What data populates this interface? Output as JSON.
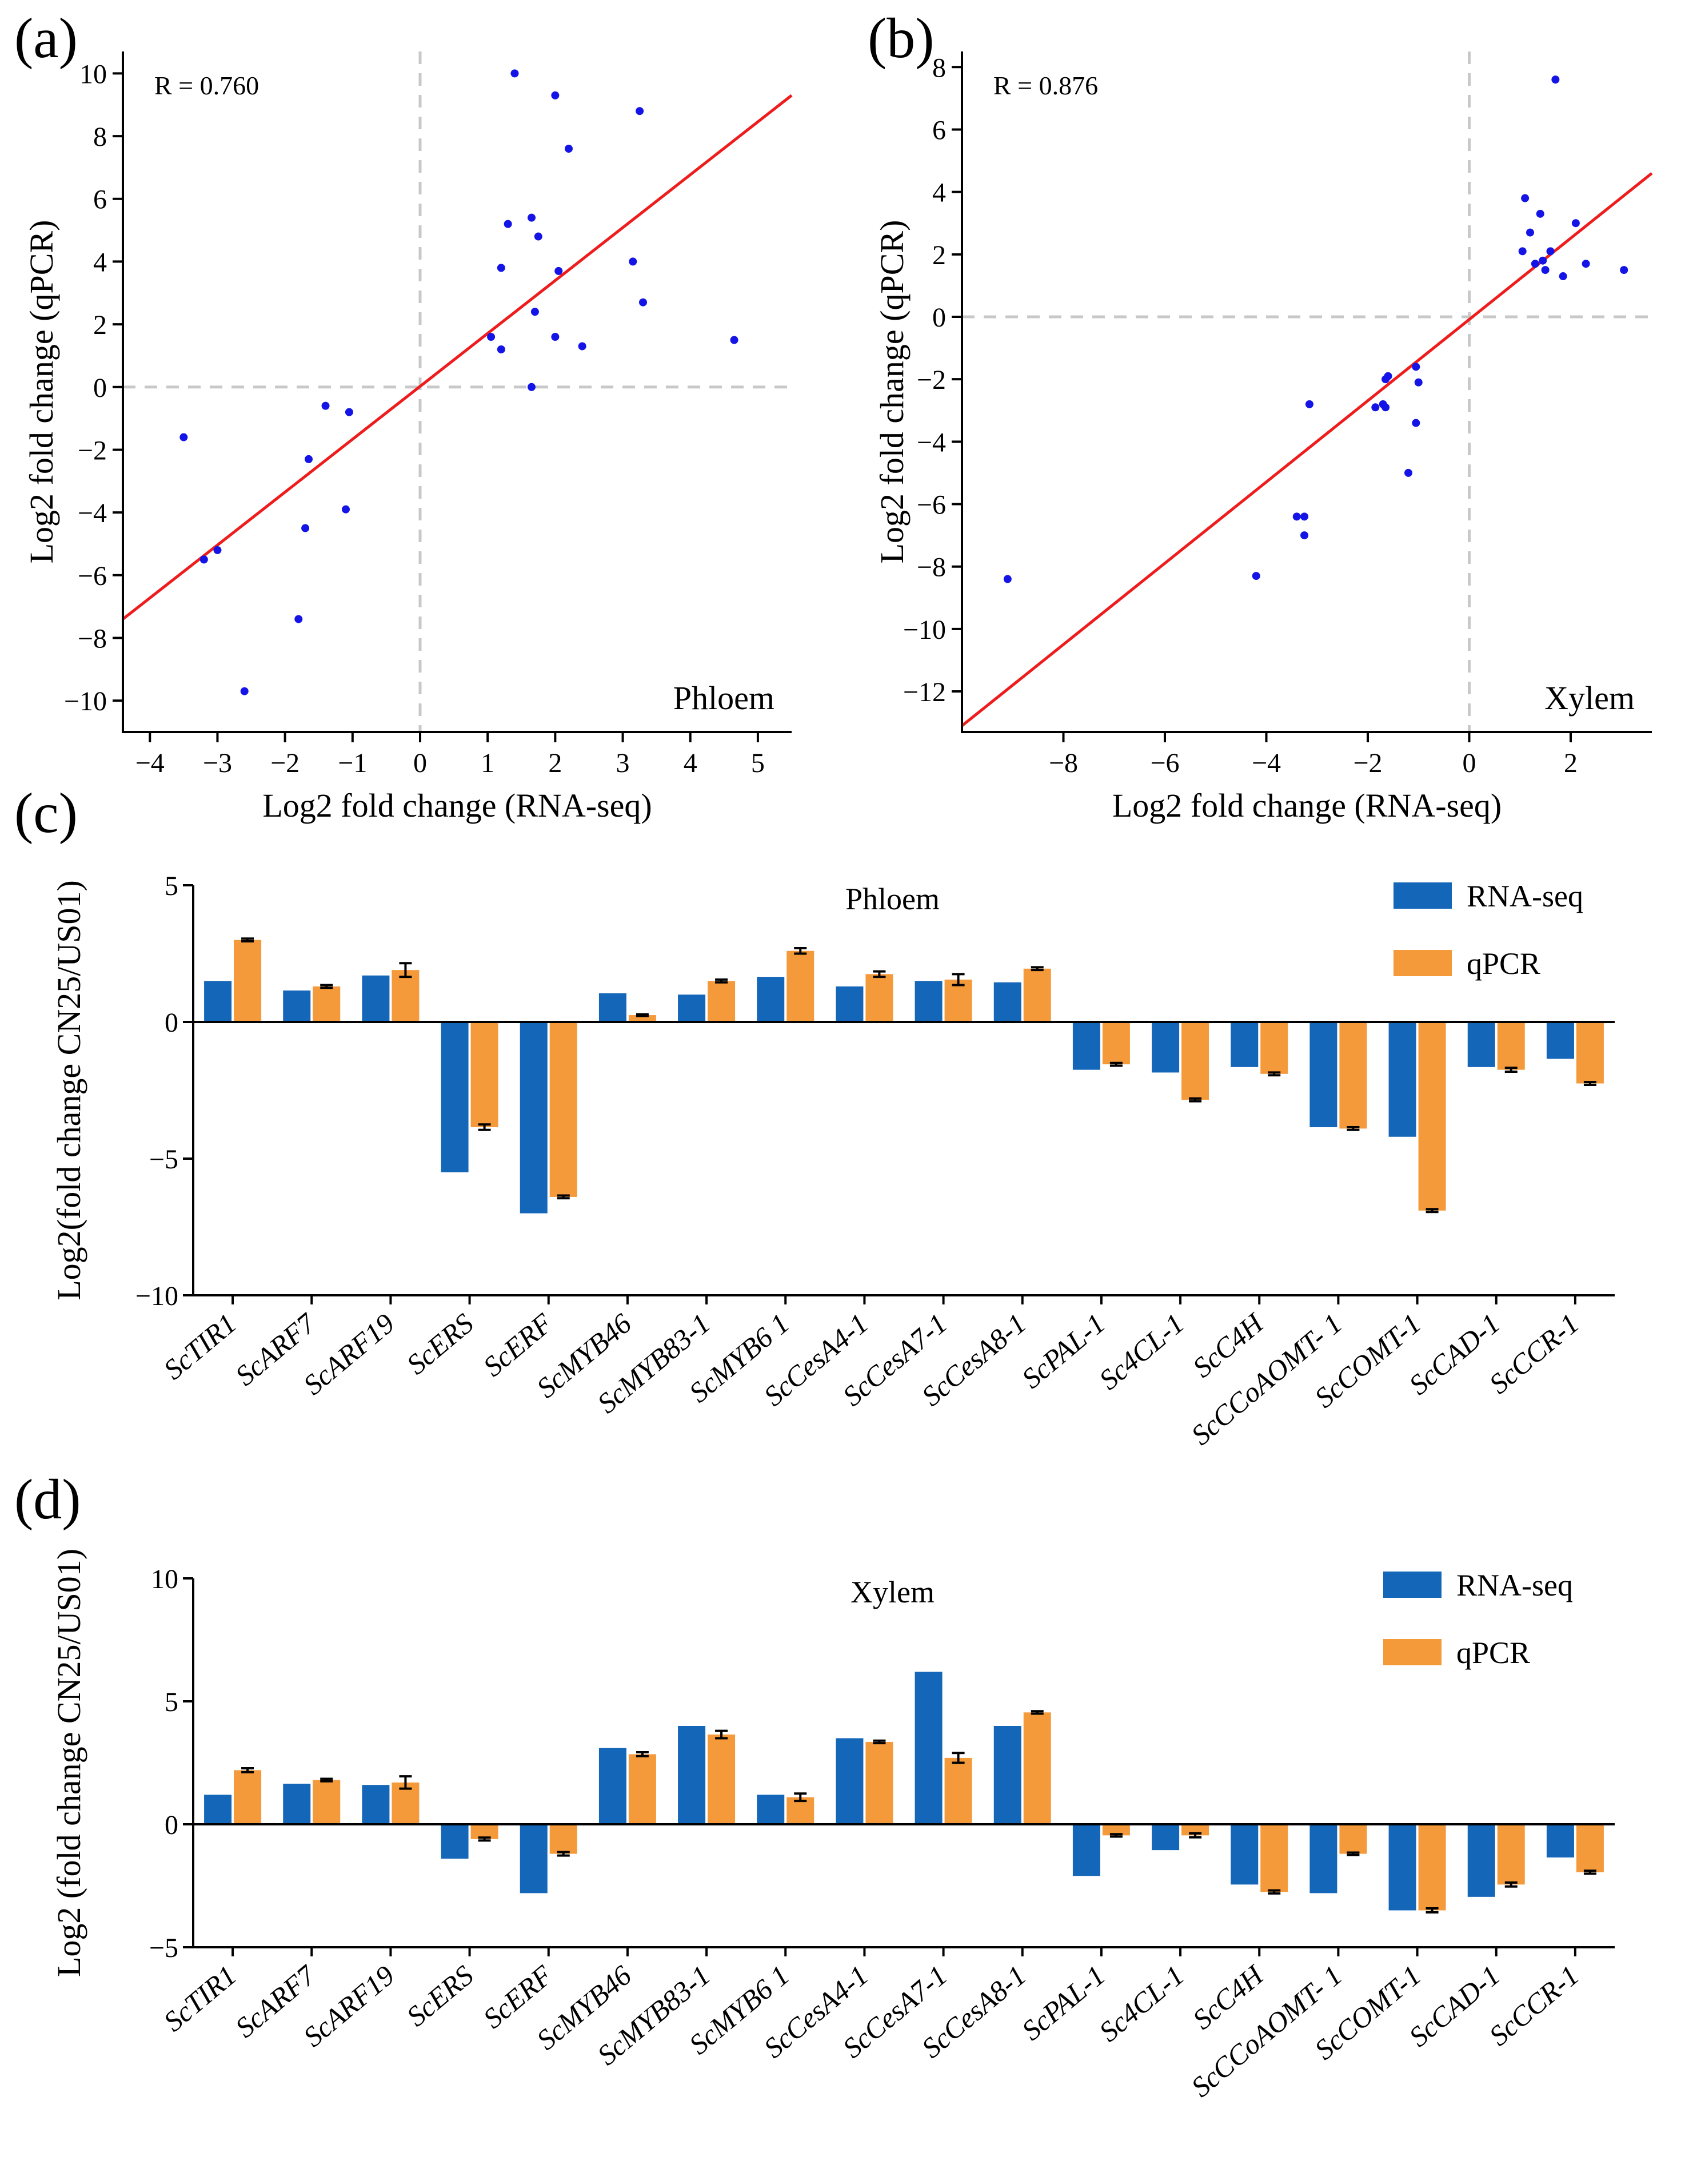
{
  "colors": {
    "point": "#1414e6",
    "fit": "#ee1c1c",
    "ref": "#c8c8c8",
    "rna": "#1466b8",
    "qpcr": "#f59a3b",
    "axis": "#000000"
  },
  "chart_data": [
    {
      "id": "a",
      "type": "scatter",
      "panel_label": "(a)",
      "xlabel": "Log2 fold change (RNA-seq)",
      "ylabel": "Log2 fold change (qPCR)",
      "r_text": "R = 0.760",
      "tissue": "Phloem",
      "xlim": [
        -4.4,
        5.5
      ],
      "ylim": [
        -11.0,
        10.7
      ],
      "xticks": [
        -4,
        -3,
        -2,
        -1,
        0,
        1,
        2,
        3,
        4,
        5
      ],
      "yticks": [
        -10,
        -8,
        -6,
        -4,
        -2,
        0,
        2,
        4,
        6,
        8,
        10
      ],
      "fit": {
        "x": [
          -4.4,
          5.5
        ],
        "y": [
          -7.4,
          9.3
        ]
      },
      "points": [
        [
          -3.5,
          -1.6
        ],
        [
          -3.2,
          -5.5
        ],
        [
          -3.0,
          -5.2
        ],
        [
          -2.6,
          -9.7
        ],
        [
          -1.8,
          -7.4
        ],
        [
          -1.7,
          -4.5
        ],
        [
          -1.65,
          -2.3
        ],
        [
          -1.4,
          -0.6
        ],
        [
          -1.1,
          -3.9
        ],
        [
          -1.05,
          -0.8
        ],
        [
          1.05,
          1.6
        ],
        [
          1.2,
          1.2
        ],
        [
          1.2,
          3.8
        ],
        [
          1.3,
          5.2
        ],
        [
          1.4,
          10.0
        ],
        [
          1.65,
          5.4
        ],
        [
          1.65,
          0.0
        ],
        [
          1.7,
          2.4
        ],
        [
          1.75,
          4.8
        ],
        [
          2.0,
          9.3
        ],
        [
          2.0,
          1.6
        ],
        [
          2.05,
          3.7
        ],
        [
          2.2,
          7.6
        ],
        [
          2.4,
          1.3
        ],
        [
          3.15,
          4.0
        ],
        [
          3.25,
          8.8
        ],
        [
          3.3,
          2.7
        ],
        [
          4.65,
          1.5
        ]
      ]
    },
    {
      "id": "b",
      "type": "scatter",
      "panel_label": "(b)",
      "xlabel": "Log2 fold change (RNA-seq)",
      "ylabel": "Log2 fold change (qPCR)",
      "r_text": "R = 0.876",
      "tissue": "Xylem",
      "xlim": [
        -10.0,
        3.6
      ],
      "ylim": [
        -13.3,
        8.5
      ],
      "xticks": [
        -8,
        -6,
        -4,
        -2,
        0,
        2
      ],
      "yticks": [
        -12,
        -10,
        -8,
        -6,
        -4,
        -2,
        0,
        2,
        4,
        6,
        8
      ],
      "fit": {
        "x": [
          -10.0,
          3.6
        ],
        "y": [
          -13.1,
          4.6
        ]
      },
      "points": [
        [
          -9.1,
          -8.4
        ],
        [
          -4.2,
          -8.3
        ],
        [
          -3.4,
          -6.4
        ],
        [
          -3.25,
          -6.4
        ],
        [
          -3.25,
          -7.0
        ],
        [
          -3.15,
          -2.8
        ],
        [
          -1.85,
          -2.9
        ],
        [
          -1.7,
          -2.8
        ],
        [
          -1.65,
          -2.9
        ],
        [
          -1.65,
          -2.0
        ],
        [
          -1.6,
          -1.9
        ],
        [
          -1.2,
          -5.0
        ],
        [
          -1.05,
          -1.6
        ],
        [
          -1.05,
          -3.4
        ],
        [
          -1.0,
          -2.1
        ],
        [
          1.05,
          2.1
        ],
        [
          1.1,
          3.8
        ],
        [
          1.2,
          2.7
        ],
        [
          1.3,
          1.7
        ],
        [
          1.4,
          3.3
        ],
        [
          1.45,
          1.8
        ],
        [
          1.5,
          1.5
        ],
        [
          1.6,
          2.1
        ],
        [
          1.7,
          7.6
        ],
        [
          1.85,
          1.3
        ],
        [
          2.1,
          3.0
        ],
        [
          2.3,
          1.7
        ],
        [
          3.05,
          1.5
        ]
      ]
    },
    {
      "id": "c",
      "type": "bar",
      "panel_label": "(c)",
      "title": "Phloem",
      "ylabel": "Log2(fold change CN25/US01)",
      "ylim": [
        -10,
        5
      ],
      "yticks": [
        -10,
        -5,
        0,
        5
      ],
      "legend": [
        "RNA-seq",
        "qPCR"
      ],
      "legend_position": "top-right",
      "categories": [
        "ScTIR1",
        "ScARF7",
        "ScARF19",
        "ScERS",
        "ScERF",
        "ScMYB46",
        "ScMYB83-1",
        "ScMYB61",
        "ScCesA4-1",
        "ScCesA7-1",
        "ScCesA8-1",
        "ScPAL-1",
        "Sc4CL-1",
        "ScC4H",
        "ScCCoAOMT-1",
        "ScCOMT-1",
        "ScCAD-1",
        "ScCCR-1"
      ],
      "category_labels": [
        "ScTIR1",
        "ScARF7",
        "ScARF19",
        "ScERS",
        "ScERF",
        "ScMYB46",
        "ScMYB83-1",
        "ScMYB6 1",
        "ScCesA4-1",
        "ScCesA7-1",
        "ScCesA8-1",
        "ScPAL-1",
        "Sc4CL-1",
        "ScC4H",
        "ScCCoAOMT- 1",
        "ScCOMT-1",
        "ScCAD-1",
        "ScCCR-1"
      ],
      "series": [
        {
          "name": "RNA-seq",
          "values": [
            1.5,
            1.15,
            1.7,
            -5.5,
            -7.0,
            1.05,
            1.0,
            1.65,
            1.3,
            1.5,
            1.45,
            -1.75,
            -1.85,
            -1.65,
            -3.85,
            -4.2,
            -1.65,
            -1.35
          ]
        },
        {
          "name": "qPCR",
          "values": [
            3.0,
            1.3,
            1.9,
            -3.85,
            -6.4,
            0.25,
            1.5,
            2.6,
            1.75,
            1.55,
            1.95,
            -1.55,
            -2.85,
            -1.9,
            -3.9,
            -6.9,
            -1.75,
            -2.25
          ],
          "errors": [
            0.05,
            0.05,
            0.25,
            0.1,
            0.05,
            0.03,
            0.05,
            0.1,
            0.1,
            0.2,
            0.05,
            0.05,
            0.05,
            0.05,
            0.05,
            0.05,
            0.07,
            0.05
          ]
        }
      ]
    },
    {
      "id": "d",
      "type": "bar",
      "panel_label": "(d)",
      "title": "Xylem",
      "ylabel": "Log2 (fold change CN25/US01)",
      "ylim": [
        -5,
        10
      ],
      "yticks": [
        -5,
        0,
        5,
        10
      ],
      "legend": [
        "RNA-seq",
        "qPCR"
      ],
      "legend_position": "top-right",
      "categories": [
        "ScTIR1",
        "ScARF7",
        "ScARF19",
        "ScERS",
        "ScERF",
        "ScMYB46",
        "ScMYB83-1",
        "ScMYB61",
        "ScCesA4-1",
        "ScCesA7-1",
        "ScCesA8-1",
        "ScPAL-1",
        "Sc4CL-1",
        "ScC4H",
        "ScCCoAOMT-1",
        "ScCOMT-1",
        "ScCAD-1",
        "ScCCR-1"
      ],
      "category_labels": [
        "ScTIR1",
        "ScARF7",
        "ScARF19",
        "ScERS",
        "ScERF",
        "ScMYB46",
        "ScMYB83-1",
        "ScMYB6 1",
        "ScCesA4-1",
        "ScCesA7-1",
        "ScCesA8-1",
        "ScPAL-1",
        "Sc4CL-1",
        "ScC4H",
        "ScCCoAOMT- 1",
        "ScCOMT-1",
        "ScCAD-1",
        "ScCCR-1"
      ],
      "series": [
        {
          "name": "RNA-seq",
          "values": [
            1.2,
            1.65,
            1.6,
            -1.4,
            -2.8,
            3.1,
            4.0,
            1.2,
            3.5,
            6.2,
            4.0,
            -2.1,
            -1.05,
            -2.45,
            -2.8,
            -3.5,
            -2.95,
            -1.35
          ]
        },
        {
          "name": "qPCR",
          "values": [
            2.2,
            1.8,
            1.7,
            -0.6,
            -1.2,
            2.85,
            3.65,
            1.1,
            3.35,
            2.7,
            4.55,
            -0.45,
            -0.45,
            -2.75,
            -1.2,
            -3.5,
            -2.45,
            -1.95
          ],
          "errors": [
            0.08,
            0.05,
            0.25,
            0.06,
            0.07,
            0.08,
            0.15,
            0.15,
            0.05,
            0.2,
            0.05,
            0.05,
            0.08,
            0.06,
            0.05,
            0.08,
            0.08,
            0.06
          ]
        }
      ]
    }
  ]
}
